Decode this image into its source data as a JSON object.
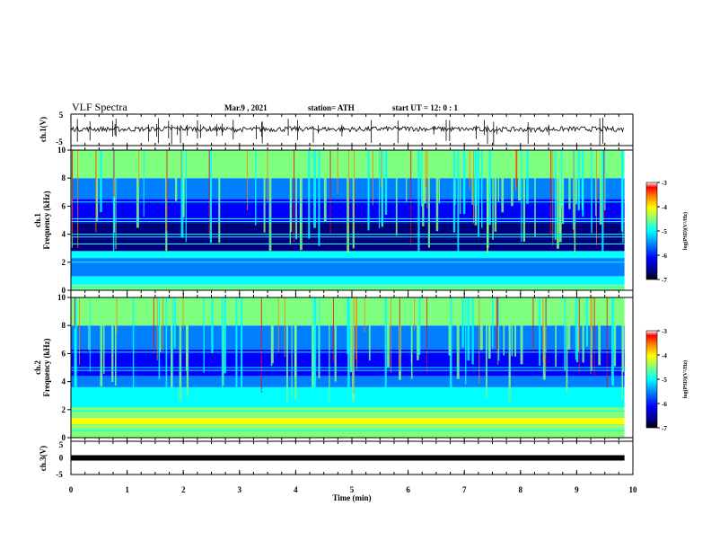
{
  "header": {
    "title": "VLF Spectra",
    "date": "Mar.9 , 2021",
    "station": "station= ATH",
    "start": "start UT = 12: 0 : 1"
  },
  "colors": {
    "ink": "#000000",
    "colormap": [
      "#00007f",
      "#0000ff",
      "#007fff",
      "#00ffff",
      "#7fff7f",
      "#ffff00",
      "#ff7f00",
      "#ff0000",
      "#ffffff"
    ]
  },
  "chart_data": [
    {
      "type": "line",
      "ylabel": "ch.1(V)",
      "ylim": [
        -5,
        5
      ],
      "yticks": [
        "5",
        "-5"
      ],
      "x": [
        0,
        1,
        2,
        3,
        4,
        5,
        6,
        7,
        8,
        9,
        9.85
      ],
      "values": [
        0.3,
        0.2,
        0.4,
        0.1,
        0.3,
        0.2,
        0.4,
        0.2,
        0.1,
        0.3,
        0.2
      ]
    },
    {
      "type": "heatmap",
      "ylabel": "ch.1\nFrequency (kHz)",
      "ylim": [
        0,
        10
      ],
      "yticks": [
        "0",
        "2",
        "4",
        "6",
        "8",
        "10"
      ],
      "xlim": [
        0,
        10
      ],
      "data_end_min": 9.85,
      "colorbar": {
        "label": "log(PSD)(V²/Hz)",
        "range": [
          -7,
          -3
        ],
        "ticks": [
          "-3",
          "-4",
          "-5",
          "-6",
          "-7"
        ]
      },
      "bands_khz": [
        {
          "from": 0,
          "to": 0.4,
          "level": 4
        },
        {
          "from": 0.4,
          "to": 1.0,
          "level": 3
        },
        {
          "from": 1.0,
          "to": 2.3,
          "level": 2
        },
        {
          "from": 2.3,
          "to": 2.8,
          "level": 3
        },
        {
          "from": 2.8,
          "to": 4.8,
          "level": 0
        },
        {
          "from": 4.8,
          "to": 6.5,
          "level": 1
        },
        {
          "from": 6.5,
          "to": 8.0,
          "level": 2
        },
        {
          "from": 8.0,
          "to": 10.0,
          "level": 4
        }
      ],
      "lines_khz": [
        0.2,
        0.9,
        2.0,
        2.5,
        3.3,
        3.8,
        4.0,
        4.9,
        5.1,
        6.3
      ]
    },
    {
      "type": "heatmap",
      "ylabel": "ch.2\nFrequency (kHz)",
      "ylim": [
        0,
        10
      ],
      "yticks": [
        "0",
        "2",
        "4",
        "6",
        "8",
        "10"
      ],
      "xlim": [
        0,
        10
      ],
      "data_end_min": 9.85,
      "colorbar": {
        "label": "log(PSD)(V²/Hz)",
        "range": [
          -7,
          -3
        ],
        "ticks": [
          "-3",
          "-4",
          "-5",
          "-6",
          "-7"
        ]
      },
      "bands_khz": [
        {
          "from": 0,
          "to": 0.8,
          "level": 4
        },
        {
          "from": 0.8,
          "to": 1.4,
          "level": 5
        },
        {
          "from": 1.4,
          "to": 2.2,
          "level": 4
        },
        {
          "from": 2.2,
          "to": 3.6,
          "level": 3
        },
        {
          "from": 3.6,
          "to": 4.4,
          "level": 2
        },
        {
          "from": 4.4,
          "to": 6.3,
          "level": 1
        },
        {
          "from": 6.3,
          "to": 8.0,
          "level": 2
        },
        {
          "from": 8.0,
          "to": 10.0,
          "level": 4
        }
      ],
      "lines_khz": [
        0.5,
        0.9,
        1.9,
        2.2,
        2.7,
        3.4,
        4.8,
        5.0,
        6.1
      ]
    },
    {
      "type": "line",
      "ylabel": "ch.3(V)",
      "ylim": [
        -5,
        5
      ],
      "yticks": [
        "5",
        "0",
        "-5"
      ],
      "x": [
        0,
        9.85
      ],
      "values": [
        0,
        0
      ]
    }
  ],
  "time_axis": {
    "label": "Time (min)",
    "range": [
      0,
      10
    ],
    "ticks": [
      "0",
      "1",
      "2",
      "3",
      "4",
      "5",
      "6",
      "7",
      "8",
      "9",
      "10"
    ]
  }
}
